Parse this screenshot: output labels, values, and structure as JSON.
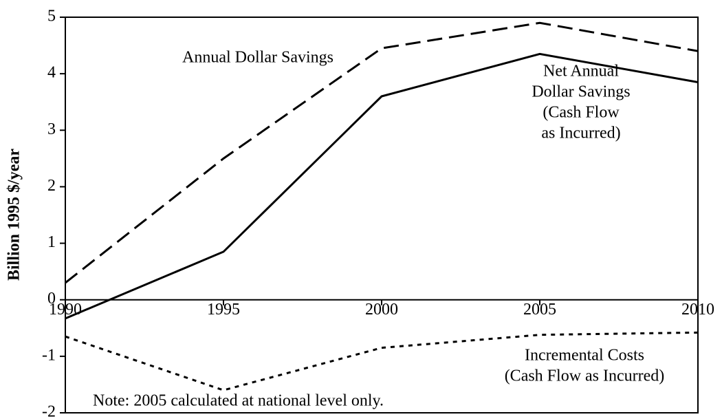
{
  "chart_data": {
    "type": "line",
    "y_label": "Billion  1995  $/year",
    "note": "Note:  2005 calculated at national level only.",
    "x": [
      1990,
      1995,
      2000,
      2005,
      2010
    ],
    "xlim": [
      1990,
      2010
    ],
    "xticks": [
      1990,
      1995,
      2000,
      2005,
      2010
    ],
    "ylim": [
      -2,
      5
    ],
    "yticks": [
      -2,
      -1,
      0,
      1,
      2,
      3,
      4,
      5
    ],
    "series": [
      {
        "name": [
          "Annual Dollar Savings"
        ],
        "color": "#000000",
        "style": "dashed",
        "values": [
          0.3,
          2.5,
          4.45,
          4.9,
          4.4
        ]
      },
      {
        "name": [
          "Net Annual",
          "Dollar Savings",
          "(Cash Flow",
          "as Incurred)"
        ],
        "color": "#000000",
        "style": "solid",
        "values": [
          -0.33,
          0.85,
          3.6,
          4.35,
          3.85
        ]
      },
      {
        "name": [
          "Incremental Costs",
          "(Cash Flow  as Incurred)"
        ],
        "color": "#000000",
        "style": "dotted",
        "values": [
          -0.65,
          -1.6,
          -0.85,
          -0.62,
          -0.58
        ]
      }
    ]
  }
}
